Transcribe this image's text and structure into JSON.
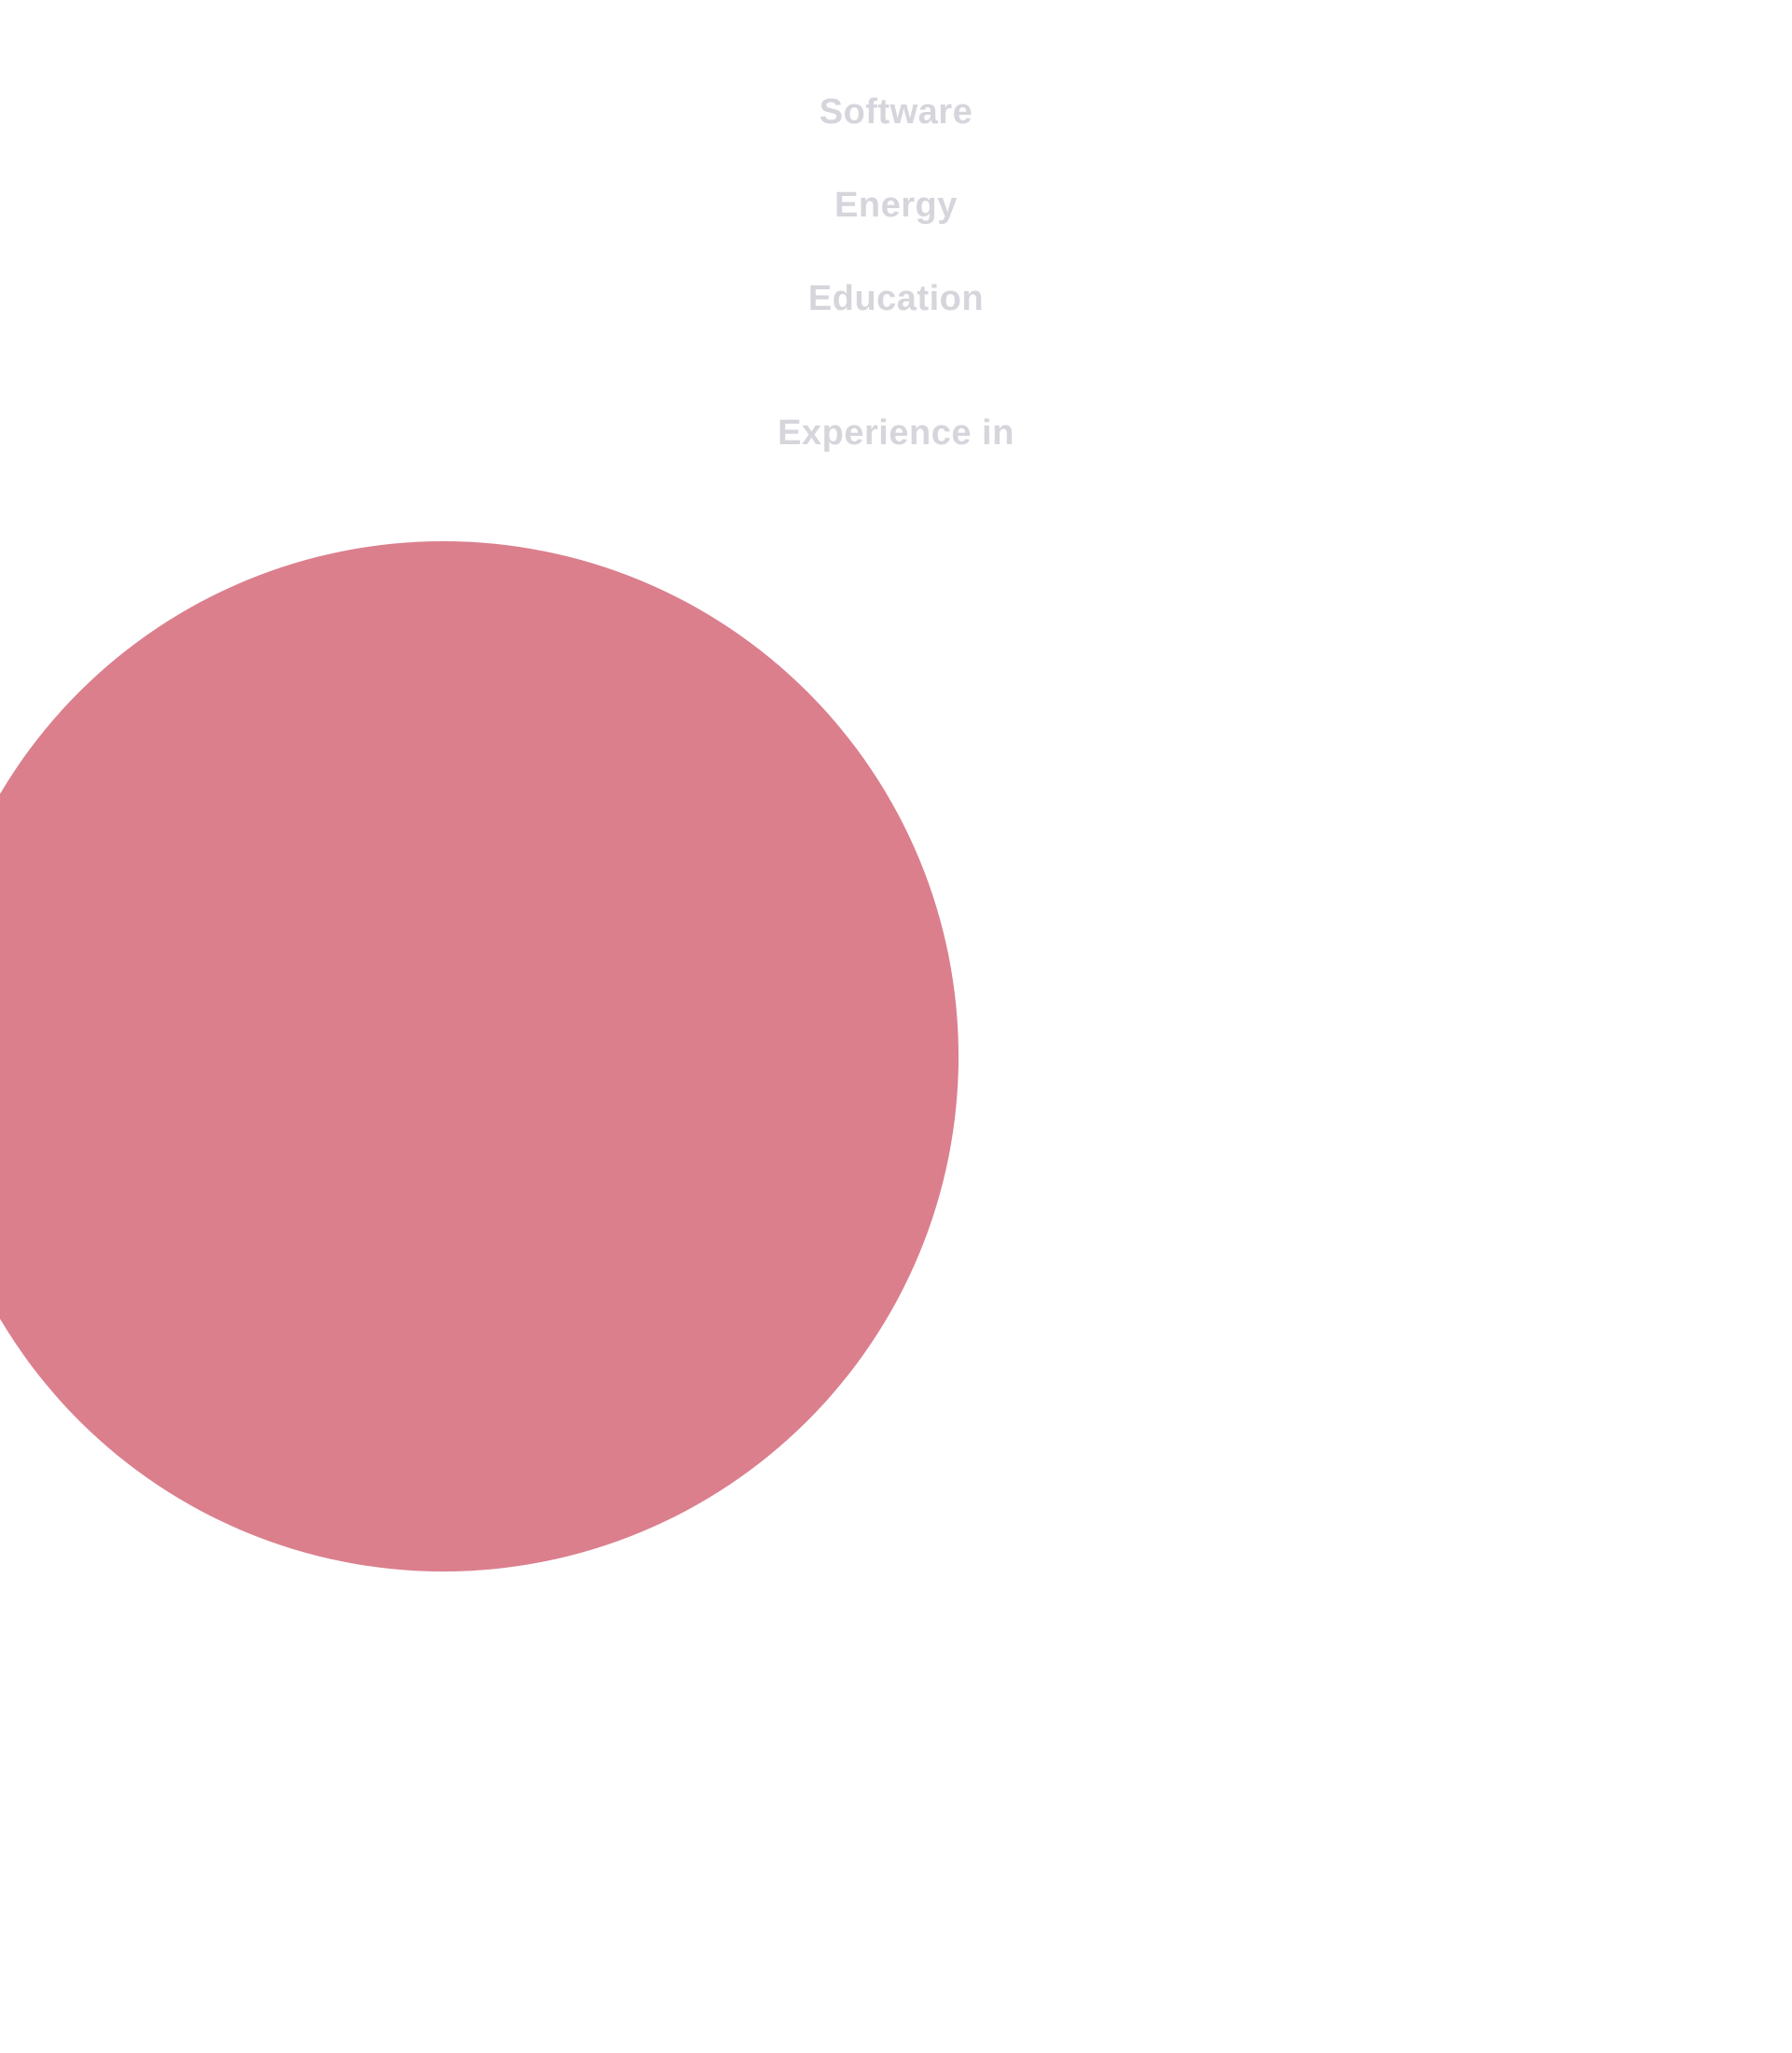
{
  "colors": {
    "background": "#ffffff",
    "label_text": "#d6d5dc",
    "circle_fill": "#db7f8d"
  },
  "industries": [
    {
      "label": "Software"
    },
    {
      "label": "Energy"
    },
    {
      "label": "Education"
    }
  ],
  "section": {
    "heading": "Experience in"
  }
}
